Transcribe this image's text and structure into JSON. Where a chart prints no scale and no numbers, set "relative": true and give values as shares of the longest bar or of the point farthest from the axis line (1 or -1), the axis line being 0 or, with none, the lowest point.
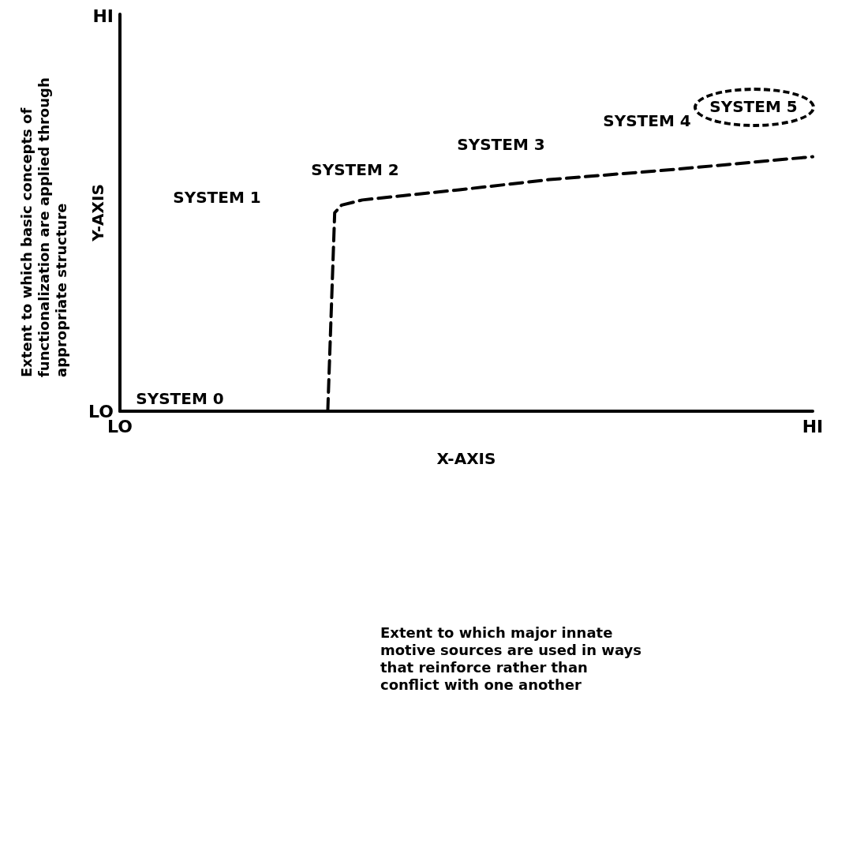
{
  "chart_data": {
    "type": "line",
    "xlabel": "X-AXIS",
    "ylabel": "Y-AXIS",
    "relative": true,
    "categories": [
      "LO",
      null,
      null,
      null,
      null,
      null,
      null,
      null,
      null,
      null,
      null,
      null,
      null,
      null,
      null,
      null,
      null,
      null,
      null,
      null,
      null,
      null,
      null,
      null,
      null,
      null,
      null,
      null,
      null,
      null,
      null,
      null,
      null,
      null,
      null,
      null,
      null,
      null,
      null,
      null,
      null,
      null,
      null,
      null,
      null,
      null,
      null,
      null,
      null,
      null,
      null,
      null,
      null,
      null,
      null,
      null,
      null,
      null,
      null,
      null,
      null,
      null,
      null,
      null,
      null,
      null,
      null,
      null,
      null,
      null,
      null,
      null,
      null,
      null,
      null,
      null,
      null,
      null,
      null,
      null,
      null,
      null,
      null,
      null,
      null,
      null,
      null,
      null,
      null,
      null,
      null,
      null,
      null,
      null,
      null,
      null,
      null,
      null,
      null,
      null,
      "HI"
    ],
    "series": [
      {
        "color": "#000000",
        "values": [
          null,
          null,
          null,
          null,
          null,
          null,
          null,
          null,
          null,
          null,
          null,
          null,
          null,
          null,
          null,
          null,
          null,
          null,
          null,
          null,
          null,
          null,
          null,
          null,
          null,
          null,
          null,
          null,
          null,
          null,
          0,
          0.78,
          0.81,
          null,
          null,
          0.83,
          null,
          null,
          null,
          null,
          null,
          null,
          null,
          null,
          null,
          null,
          null,
          null,
          null,
          0.87,
          null,
          null,
          null,
          null,
          null,
          null,
          null,
          null,
          null,
          null,
          null,
          null,
          0.91,
          null,
          null,
          null,
          null,
          null,
          null,
          null,
          null,
          null,
          null,
          null,
          null,
          null,
          null,
          null,
          null,
          null,
          0.95,
          null,
          null,
          null,
          null,
          null,
          null,
          null,
          null,
          null,
          null,
          null,
          null,
          null,
          null,
          null,
          null,
          null,
          null,
          null,
          1
        ]
      }
    ],
    "line_style": "dashed",
    "marker": "none",
    "grid": false,
    "annotations": [
      "SYSTEM 0",
      "SYSTEM 1",
      "SYSTEM 2",
      "SYSTEM 3",
      "SYSTEM 4",
      "SYSTEM 5",
      "Extent to which major innate motive sources are used in ways that reinforce rather than conflict with one another",
      "Extent to which basic concepts of functionalization are applied through appropriate structure",
      "LO",
      "HI"
    ]
  }
}
